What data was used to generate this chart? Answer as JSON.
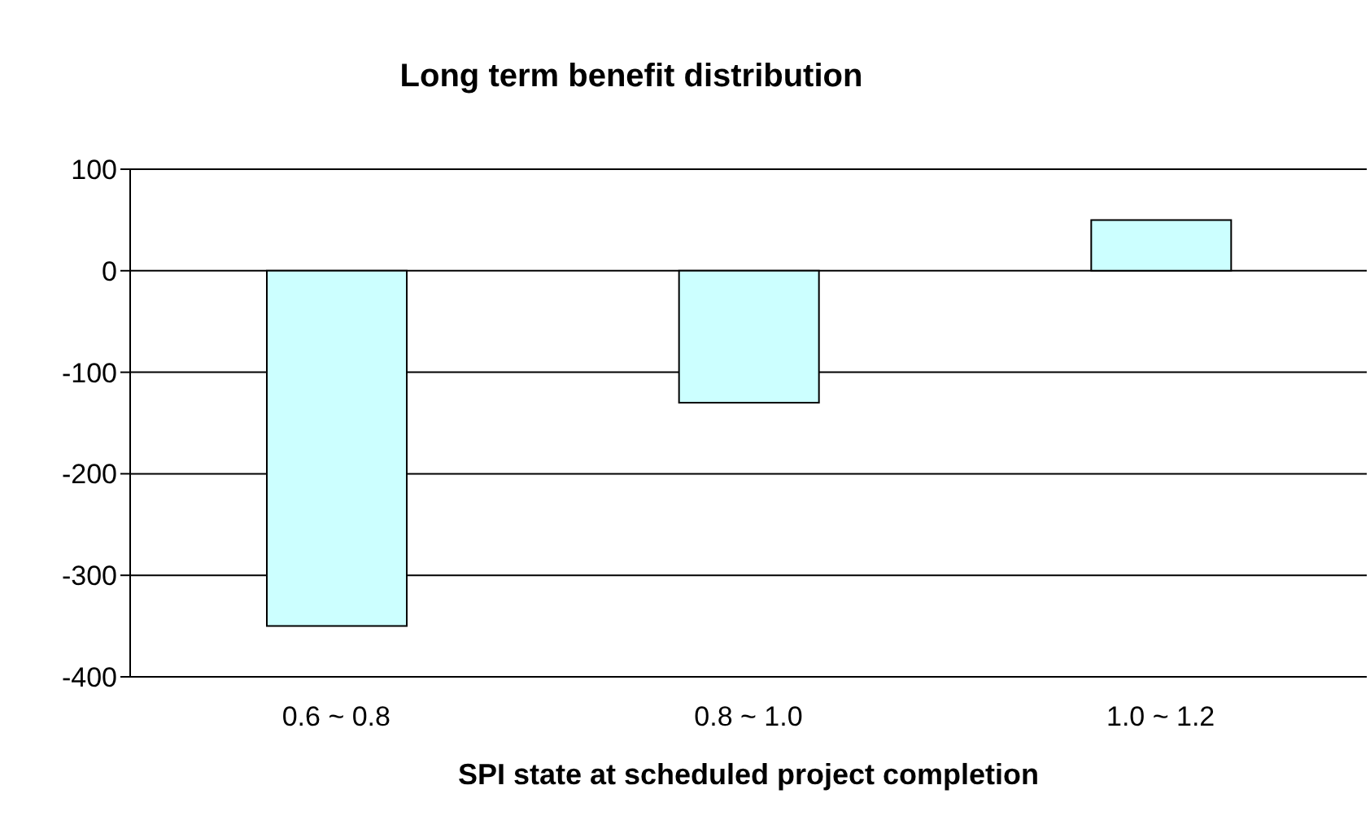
{
  "chart_data": {
    "type": "bar",
    "title": "Long term benefit distribution",
    "xlabel": "SPI state at scheduled project completion",
    "categories": [
      "0.6 ~ 0.8",
      "0.8 ~ 1.0",
      "1.0 ~ 1.2"
    ],
    "values": [
      -350,
      -130,
      50
    ],
    "color": "#ccffff",
    "ylim": [
      -400,
      100
    ],
    "yticks": [
      -400,
      -300,
      -200,
      -100,
      0,
      100
    ],
    "grid": "y"
  }
}
